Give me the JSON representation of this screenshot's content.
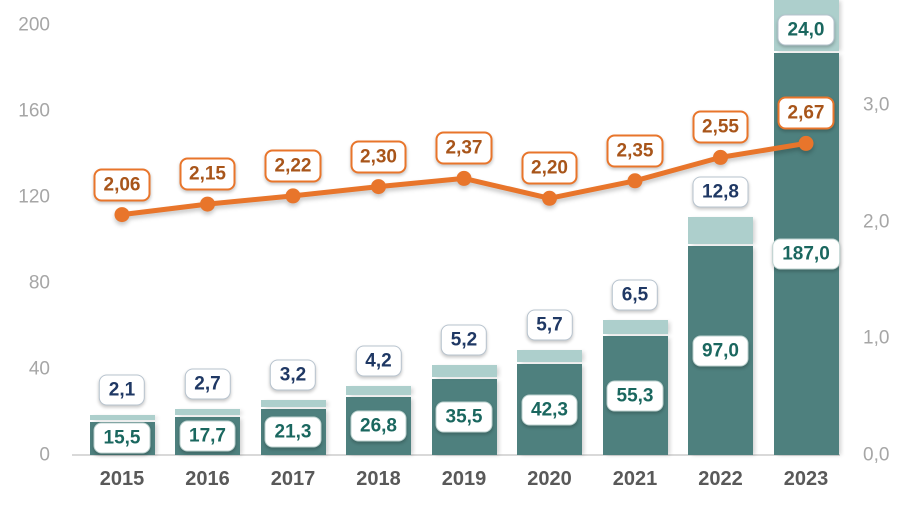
{
  "chart_data": {
    "type": "combo",
    "title": "",
    "categories": [
      "2015",
      "2016",
      "2017",
      "2018",
      "2019",
      "2020",
      "2021",
      "2022",
      "2023"
    ],
    "series": [
      {
        "name": "main-bar",
        "type": "bar",
        "axis": "left",
        "values": [
          15.5,
          17.7,
          21.3,
          26.8,
          35.5,
          42.3,
          55.3,
          97.0,
          187.0
        ],
        "labels": [
          "15,5",
          "17,7",
          "21,3",
          "26,8",
          "35,5",
          "42,3",
          "55,3",
          "97,0",
          "187,0"
        ],
        "color": "#4E807E",
        "label_text_color": "#1A675F",
        "label_border_color": "#BCD2CF"
      },
      {
        "name": "top-bar",
        "type": "bar",
        "axis": "left",
        "values": [
          2.1,
          2.7,
          3.2,
          4.2,
          5.2,
          5.7,
          6.5,
          12.8,
          24.0
        ],
        "labels": [
          "2,1",
          "2,7",
          "3,2",
          "4,2",
          "5,2",
          "5,7",
          "6,5",
          "12,8",
          "24,0"
        ],
        "color": "#ADCFCC",
        "label_text_color": "#1F3864",
        "label_border_color": "#B7C3CE",
        "label_text_color_overrides": {
          "2023": "#1A675F"
        }
      },
      {
        "name": "ratio-line",
        "type": "line",
        "axis": "right",
        "values": [
          2.06,
          2.15,
          2.22,
          2.3,
          2.37,
          2.2,
          2.35,
          2.55,
          2.67
        ],
        "labels": [
          "2,06",
          "2,15",
          "2,22",
          "2,30",
          "2,37",
          "2,20",
          "2,35",
          "2,55",
          "2,67"
        ],
        "color": "#E8752B",
        "label_text_color": "#A8551A",
        "label_border_color": "#E8752B"
      }
    ],
    "axes": {
      "left": {
        "range": [
          0,
          200
        ],
        "ticks": [
          0,
          40,
          80,
          120,
          160,
          200
        ],
        "labels": [
          "0",
          "40",
          "80",
          "120",
          "160",
          "200"
        ],
        "color": "#A6A6A6"
      },
      "right": {
        "range": [
          0,
          3
        ],
        "ticks": [
          0,
          1,
          2,
          3
        ],
        "labels": [
          "0,0",
          "1,0",
          "2,0",
          "3,0"
        ],
        "color": "#A6A6A6"
      },
      "x": {
        "labels": [
          "2015",
          "2016",
          "2017",
          "2018",
          "2019",
          "2020",
          "2021",
          "2022",
          "2023"
        ],
        "color": "#595959"
      }
    },
    "grid": false,
    "legend": false,
    "background": "#FFFFFF",
    "baseline_color": "#D9D9D9"
  }
}
